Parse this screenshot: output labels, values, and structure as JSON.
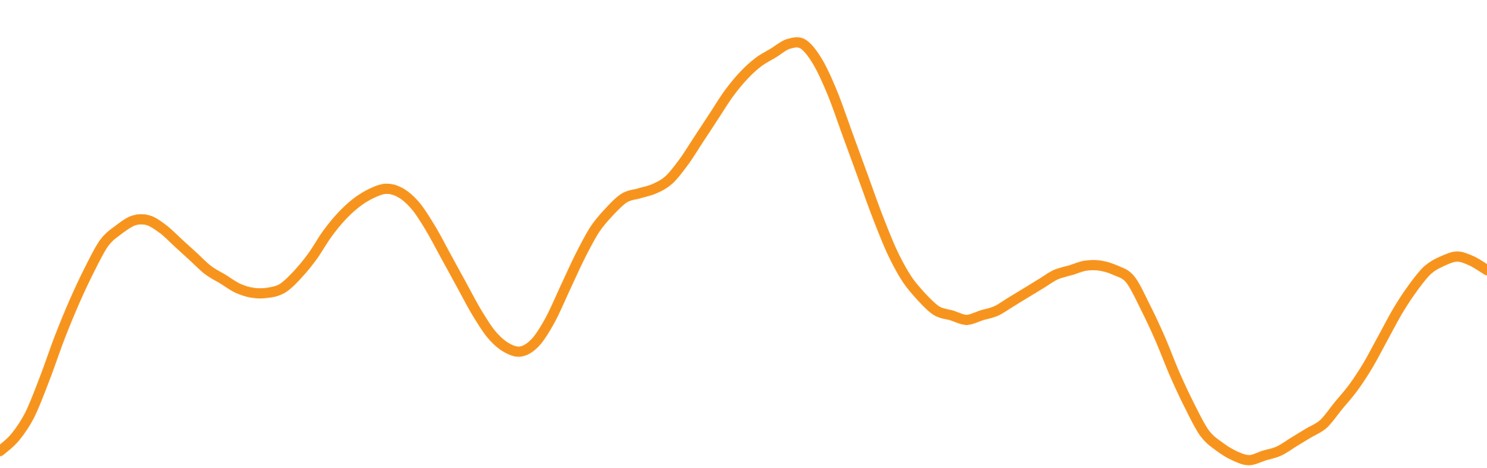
{
  "chart_data": {
    "type": "line",
    "title": "",
    "xlabel": "",
    "ylabel": "",
    "grid": false,
    "legend": "none",
    "xlim": [
      0,
      100
    ],
    "ylim": [
      0,
      100
    ],
    "series": [
      {
        "color": "#F7941D",
        "x": [
          0,
          1,
          2,
          3,
          4,
          5,
          6,
          7,
          8,
          9,
          10,
          11,
          12,
          13,
          14,
          15,
          16,
          17,
          18,
          19,
          20,
          21,
          22,
          23,
          24,
          25,
          26,
          27,
          28,
          29,
          30,
          31,
          32,
          33,
          34,
          35,
          36,
          37,
          38,
          39,
          40,
          41,
          42,
          43,
          44,
          45,
          46,
          47,
          48,
          49,
          50,
          51,
          52,
          53,
          54,
          55,
          56,
          57,
          58,
          59,
          60,
          61,
          62,
          63,
          64,
          65,
          66,
          67,
          68,
          69,
          70,
          71,
          72,
          73,
          74,
          75,
          76,
          77,
          78,
          79,
          80,
          81,
          82,
          83,
          84,
          85,
          86,
          87,
          88,
          89,
          90,
          91,
          92,
          93,
          94,
          95,
          96,
          97,
          98,
          99,
          100
        ],
        "y": [
          2,
          5,
          10,
          18,
          27,
          35,
          42,
          48,
          51,
          53,
          53,
          51,
          48,
          45,
          42,
          40,
          38,
          37,
          37,
          38,
          41,
          45,
          50,
          54,
          57,
          59,
          60,
          59,
          56,
          51,
          45,
          39,
          33,
          28,
          25,
          24,
          26,
          31,
          38,
          45,
          51,
          55,
          58,
          59,
          60,
          62,
          66,
          71,
          76,
          81,
          85,
          88,
          90,
          92,
          92,
          88,
          81,
          72,
          63,
          54,
          46,
          40,
          36,
          33,
          32,
          31,
          32,
          33,
          35,
          37,
          39,
          41,
          42,
          43,
          43,
          42,
          40,
          34,
          27,
          19,
          12,
          6,
          3,
          1,
          0,
          1,
          2,
          4,
          6,
          8,
          12,
          16,
          21,
          27,
          33,
          38,
          42,
          44,
          45,
          44,
          42
        ]
      }
    ]
  }
}
